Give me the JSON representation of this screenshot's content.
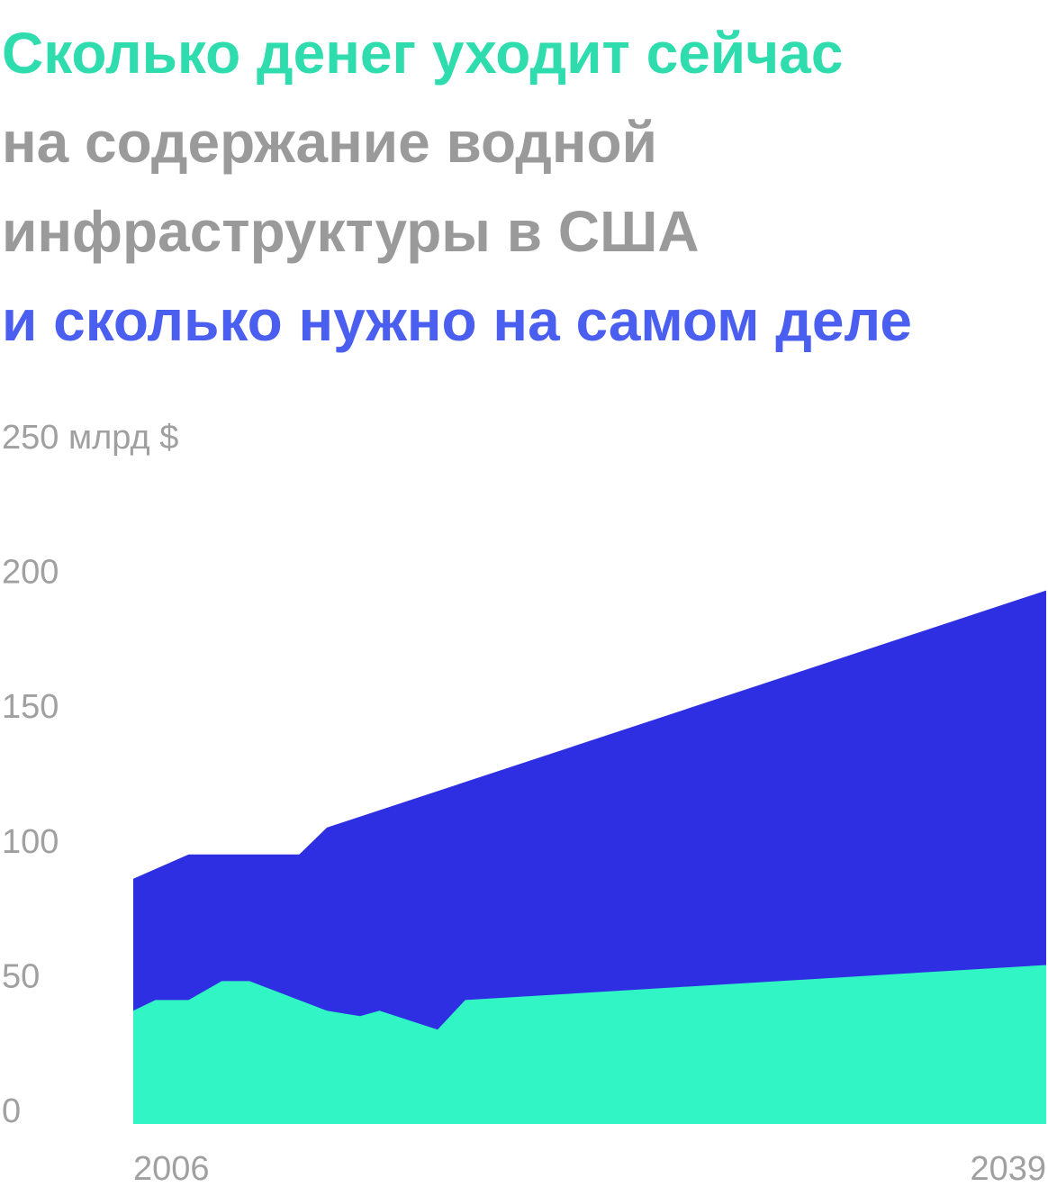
{
  "title": {
    "line1": "Сколько денег уходит сейчас",
    "line2": "на содержание водной",
    "line3": "инфраструктуры в США",
    "line4": "и сколько нужно на самом деле"
  },
  "colors": {
    "spending": "#31f5c4",
    "needed": "#2e2ee2",
    "title_green": "#2edcae",
    "title_gray": "#9a9a9a",
    "title_blue": "#4a5ef0",
    "axis_text": "#a0a0a0"
  },
  "chart_data": {
    "type": "area",
    "title": "Сколько денег уходит сейчас на содержание водной инфраструктуры в США и сколько нужно на самом деле",
    "xlabel": "",
    "ylabel": "",
    "y_unit": "млрд $",
    "xlim": [
      2006,
      2039
    ],
    "ylim": [
      0,
      250
    ],
    "grid": false,
    "legend": "none",
    "y_ticks": [
      "0",
      "50",
      "100",
      "150",
      "200",
      "250 млрд $"
    ],
    "x_ticks": [
      "2006",
      "2039"
    ],
    "series": [
      {
        "color": "#2e2ee2",
        "x": [
          2006,
          2008,
          2012,
          2013,
          2039
        ],
        "values": [
          91,
          100,
          100,
          110,
          198
        ]
      },
      {
        "color": "#31f5c4",
        "x": [
          2006,
          2006.8,
          2008,
          2009.2,
          2010.2,
          2013,
          2014.2,
          2014.9,
          2017,
          2018,
          2039
        ],
        "values": [
          42,
          46,
          46,
          53,
          53,
          42,
          40,
          42,
          35,
          46,
          59
        ]
      }
    ]
  }
}
